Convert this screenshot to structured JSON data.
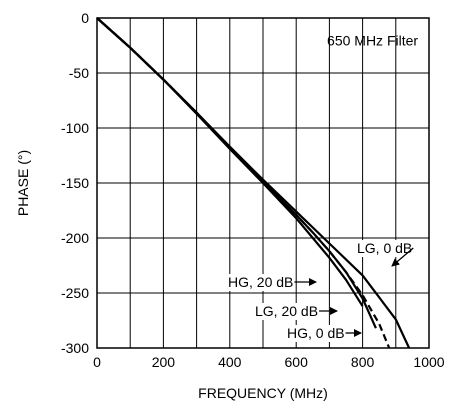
{
  "chart_data": {
    "type": "line",
    "title": "650 MHz Filter",
    "xlabel": "FREQUENCY (MHz)",
    "ylabel": "PHASE (°)",
    "xlim": [
      0,
      1000
    ],
    "ylim": [
      -300,
      0
    ],
    "xticks": [
      0,
      200,
      400,
      600,
      800,
      1000
    ],
    "xtick_labels": [
      "0",
      "200",
      "400",
      "600",
      "800",
      "1000"
    ],
    "yticks": [
      0,
      -50,
      -100,
      -150,
      -200,
      -250,
      -300
    ],
    "ytick_labels": [
      "0",
      "-50",
      "-100",
      "-150",
      "-200",
      "-250",
      "-300"
    ],
    "grid": true,
    "series": [
      {
        "name": "LG, 0 dB",
        "dash": "solid",
        "x": [
          0,
          100,
          200,
          300,
          400,
          500,
          600,
          700,
          800,
          900,
          940
        ],
        "y": [
          0,
          -27,
          -56,
          -86,
          -117,
          -147,
          -176,
          -205,
          -234,
          -274,
          -300
        ]
      },
      {
        "name": "HG, 20 dB",
        "dash": "solid",
        "x": [
          0,
          100,
          200,
          300,
          400,
          500,
          600,
          650,
          700,
          750,
          800
        ],
        "y": [
          0,
          -27,
          -56,
          -87,
          -119,
          -150,
          -182,
          -200,
          -218,
          -238,
          -262
        ]
      },
      {
        "name": "LG, 20 dB",
        "dash": "solid",
        "x": [
          0,
          100,
          200,
          300,
          400,
          500,
          600,
          650,
          700,
          750,
          800,
          840
        ],
        "y": [
          0,
          -27,
          -56,
          -86,
          -118,
          -149,
          -179,
          -195,
          -212,
          -231,
          -255,
          -282
        ]
      },
      {
        "name": "HG, 0 dB",
        "dash": "dashed",
        "x": [
          0,
          100,
          200,
          300,
          400,
          500,
          600,
          650,
          700,
          750,
          800,
          850,
          880
        ],
        "y": [
          0,
          -27,
          -56,
          -86,
          -118,
          -149,
          -179,
          -195,
          -212,
          -231,
          -252,
          -278,
          -300
        ]
      }
    ],
    "annotations": [
      {
        "text": "LG, 0 dB",
        "series": "LG, 0 dB",
        "x": 810,
        "y": -245
      },
      {
        "text": "HG, 20 dB",
        "series": "HG, 20 dB",
        "x": 705,
        "y": -225
      },
      {
        "text": "LG, 20 dB",
        "series": "LG, 20 dB",
        "x": 735,
        "y": -252
      },
      {
        "text": "HG, 0 dB",
        "series": "HG, 0 dB",
        "x": 880,
        "y": -288
      }
    ]
  }
}
